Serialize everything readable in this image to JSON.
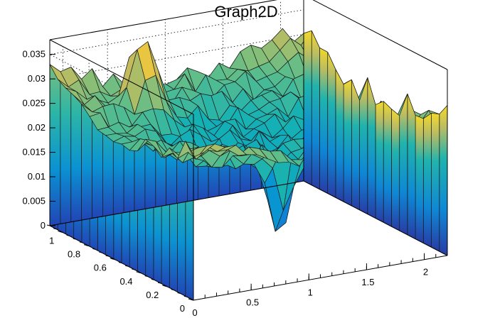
{
  "chart_data": {
    "type": "surface",
    "title": "Graph2D",
    "xlabel": "",
    "ylabel": "",
    "zlabel": "",
    "xlim": [
      0,
      2.2
    ],
    "ylim": [
      0,
      1.1
    ],
    "zlim": [
      0,
      0.038
    ],
    "grid": true,
    "palette": "kBird",
    "x_ticks": [
      "0",
      "0.5",
      "1",
      "1.5",
      "2"
    ],
    "y_ticks": [
      "0",
      "0.2",
      "0.4",
      "0.6",
      "0.8",
      "1"
    ],
    "z_ticks": [
      "0",
      "0.005",
      "0.01",
      "0.015",
      "0.02",
      "0.025",
      "0.03",
      "0.035"
    ],
    "surface_description": "Saddle-like surface: higher along far back and right edges (~0.025-0.03), dipping toward center (~0.015-0.02), with a sharp peak near x=0.6,y=0.9 reaching ~0.036 and a spike down to ~0.004 near x=1.0,y=0.2.",
    "nx": 24,
    "ny": 18,
    "peaks": [
      {
        "x": 0.62,
        "y": 0.92,
        "z": 0.036
      },
      {
        "x": 0.95,
        "y": 0.18,
        "z": 0.004
      }
    ]
  },
  "colors": {
    "axis": "#000000",
    "mesh": "#1a1a1a",
    "palette_low": "#352a87",
    "palette_mid": "#2fb8b8",
    "palette_high": "#f9e21f"
  }
}
